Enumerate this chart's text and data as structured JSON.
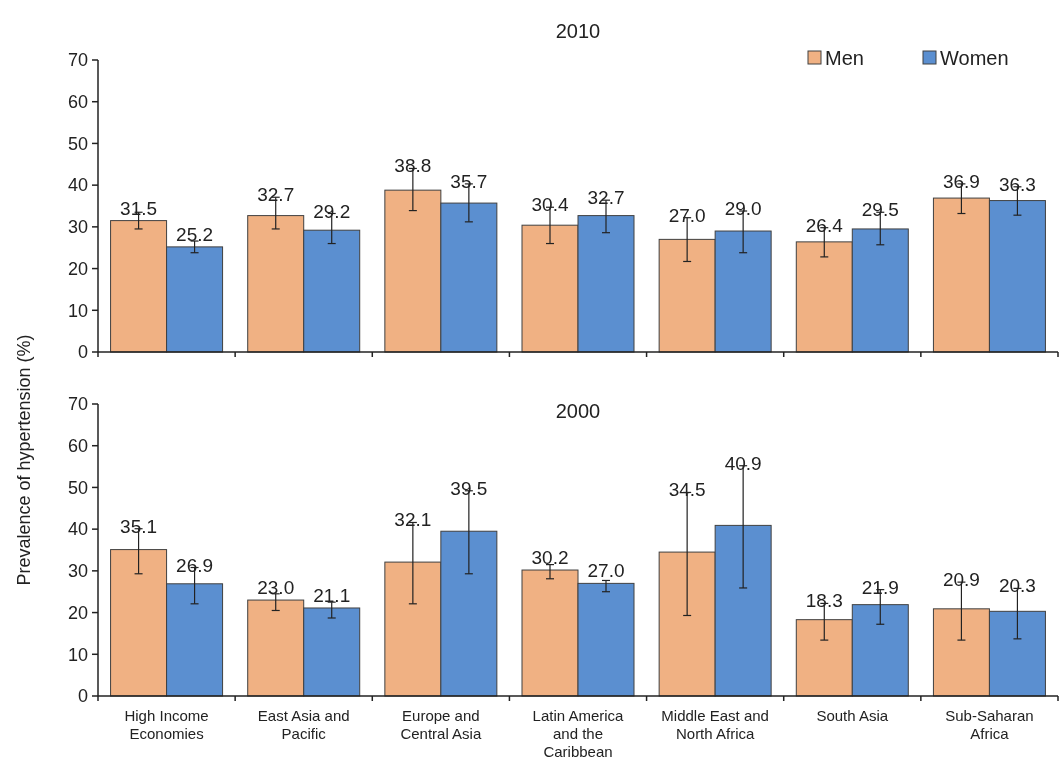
{
  "chart_data": [
    {
      "type": "bar",
      "title": "2010",
      "categories": [
        null,
        null,
        null,
        null,
        null,
        null,
        null
      ],
      "series": [
        {
          "name": "Men",
          "color": "#f0b183",
          "values": [
            31.5,
            32.7,
            38.8,
            30.4,
            27.0,
            26.4,
            36.9
          ],
          "value_labels": [
            "31.5",
            "32.7",
            "38.8",
            "30.4",
            "27.0",
            "26.4",
            "36.9"
          ],
          "errors": [
            [
              29.5,
              33.5
            ],
            [
              29.5,
              37.1
            ],
            [
              33.9,
              44.0
            ],
            [
              26.0,
              34.7
            ],
            [
              21.7,
              32.2
            ],
            [
              22.8,
              29.8
            ],
            [
              33.2,
              40.3
            ]
          ]
        },
        {
          "name": "Women",
          "color": "#5b8fd0",
          "values": [
            25.2,
            29.2,
            35.7,
            32.7,
            29.0,
            29.5,
            36.3
          ],
          "value_labels": [
            "25.2",
            "29.2",
            "35.7",
            "32.7",
            "29.0",
            "29.5",
            "36.3"
          ],
          "errors": [
            [
              23.8,
              26.6
            ],
            [
              26.0,
              33.2
            ],
            [
              31.2,
              40.3
            ],
            [
              28.6,
              36.4
            ],
            [
              23.8,
              33.8
            ],
            [
              25.7,
              33.5
            ],
            [
              32.8,
              39.6
            ]
          ]
        }
      ],
      "ylim": [
        0,
        70
      ],
      "yticks": [
        0,
        10,
        20,
        30,
        40,
        50,
        60,
        70
      ],
      "legend": "top right",
      "tick_labels": "y"
    },
    {
      "type": "bar",
      "title": "2000",
      "ylabel": "Prevalence of hypertension (%)",
      "categories": [
        "High Income Economies",
        "East Asia and Pacific",
        "Europe and Central Asia",
        "Latin America and the Caribbean",
        "Middle East and North Africa",
        "South Asia",
        "Sub-Saharan Africa"
      ],
      "series": [
        {
          "color": "#f0b183",
          "values": [
            35.1,
            23.0,
            32.1,
            30.2,
            34.5,
            18.3,
            20.9
          ],
          "value_labels": [
            "35.1",
            "23.0",
            "32.1",
            "30.2",
            "34.5",
            "18.3",
            "20.9"
          ],
          "errors": [
            [
              29.3,
              40.1
            ],
            [
              20.5,
              24.5
            ],
            [
              22.1,
              41.6
            ],
            [
              28.1,
              31.5
            ],
            [
              19.3,
              48.8
            ],
            [
              13.4,
              22.2
            ],
            [
              13.4,
              27.3
            ]
          ]
        },
        {
          "color": "#5b8fd0",
          "values": [
            26.9,
            21.1,
            39.5,
            27.0,
            40.9,
            21.9,
            20.3
          ],
          "value_labels": [
            "26.9",
            "21.1",
            "39.5",
            "27.0",
            "40.9",
            "21.9",
            "20.3"
          ],
          "errors": [
            [
              22.1,
              30.8
            ],
            [
              18.7,
              22.5
            ],
            [
              29.3,
              49.2
            ],
            [
              25.0,
              27.7
            ],
            [
              25.9,
              55.2
            ],
            [
              17.2,
              25.5
            ],
            [
              13.7,
              25.8
            ]
          ]
        }
      ],
      "ylim": [
        0,
        70
      ],
      "yticks": [
        0,
        10,
        20,
        30,
        40,
        50,
        60,
        70
      ]
    }
  ]
}
